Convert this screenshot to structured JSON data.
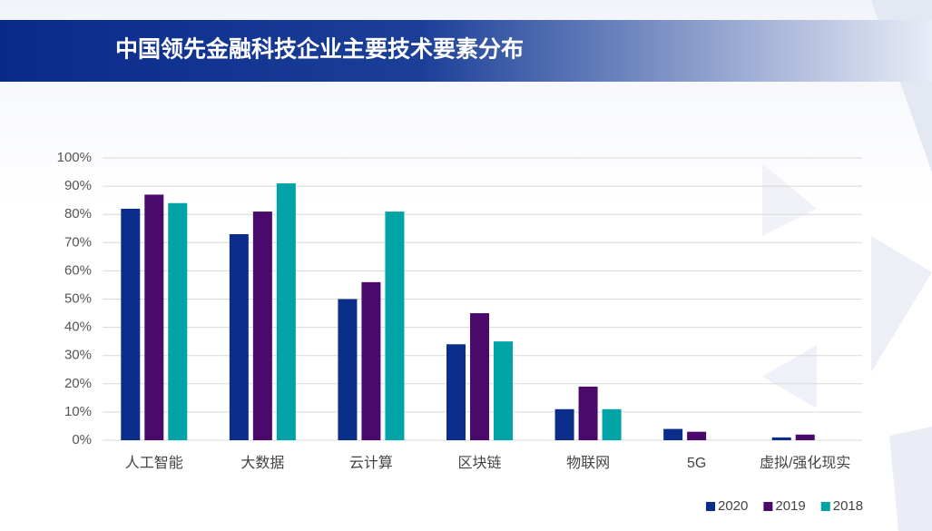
{
  "chart_data": {
    "type": "bar",
    "title": "中国领先金融科技企业主要技术要素分布",
    "categories": [
      "人工智能",
      "大数据",
      "云计算",
      "区块链",
      "物联网",
      "5G",
      "虚拟/强化现实"
    ],
    "series": [
      {
        "name": "2020",
        "color": "#0b2e8a",
        "values": [
          82,
          73,
          50,
          34,
          11,
          4,
          1
        ]
      },
      {
        "name": "2019",
        "color": "#4a0a6b",
        "values": [
          87,
          81,
          56,
          45,
          19,
          3,
          2
        ]
      },
      {
        "name": "2018",
        "color": "#00a4a6",
        "values": [
          84,
          91,
          81,
          35,
          11,
          null,
          null
        ]
      }
    ],
    "ylim": [
      0,
      100
    ],
    "yticks": [
      {
        "value": 0,
        "label": "0%"
      },
      {
        "value": 10,
        "label": "10%"
      },
      {
        "value": 20,
        "label": "20%"
      },
      {
        "value": 30,
        "label": "30%"
      },
      {
        "value": 40,
        "label": "40%"
      },
      {
        "value": 50,
        "label": "50%"
      },
      {
        "value": 60,
        "label": "60%"
      },
      {
        "value": 70,
        "label": "70%"
      },
      {
        "value": 80,
        "label": "80%"
      },
      {
        "value": 90,
        "label": "90%"
      },
      {
        "value": 100,
        "label": "100%"
      }
    ],
    "grid": true,
    "legend": "bottom-right"
  }
}
